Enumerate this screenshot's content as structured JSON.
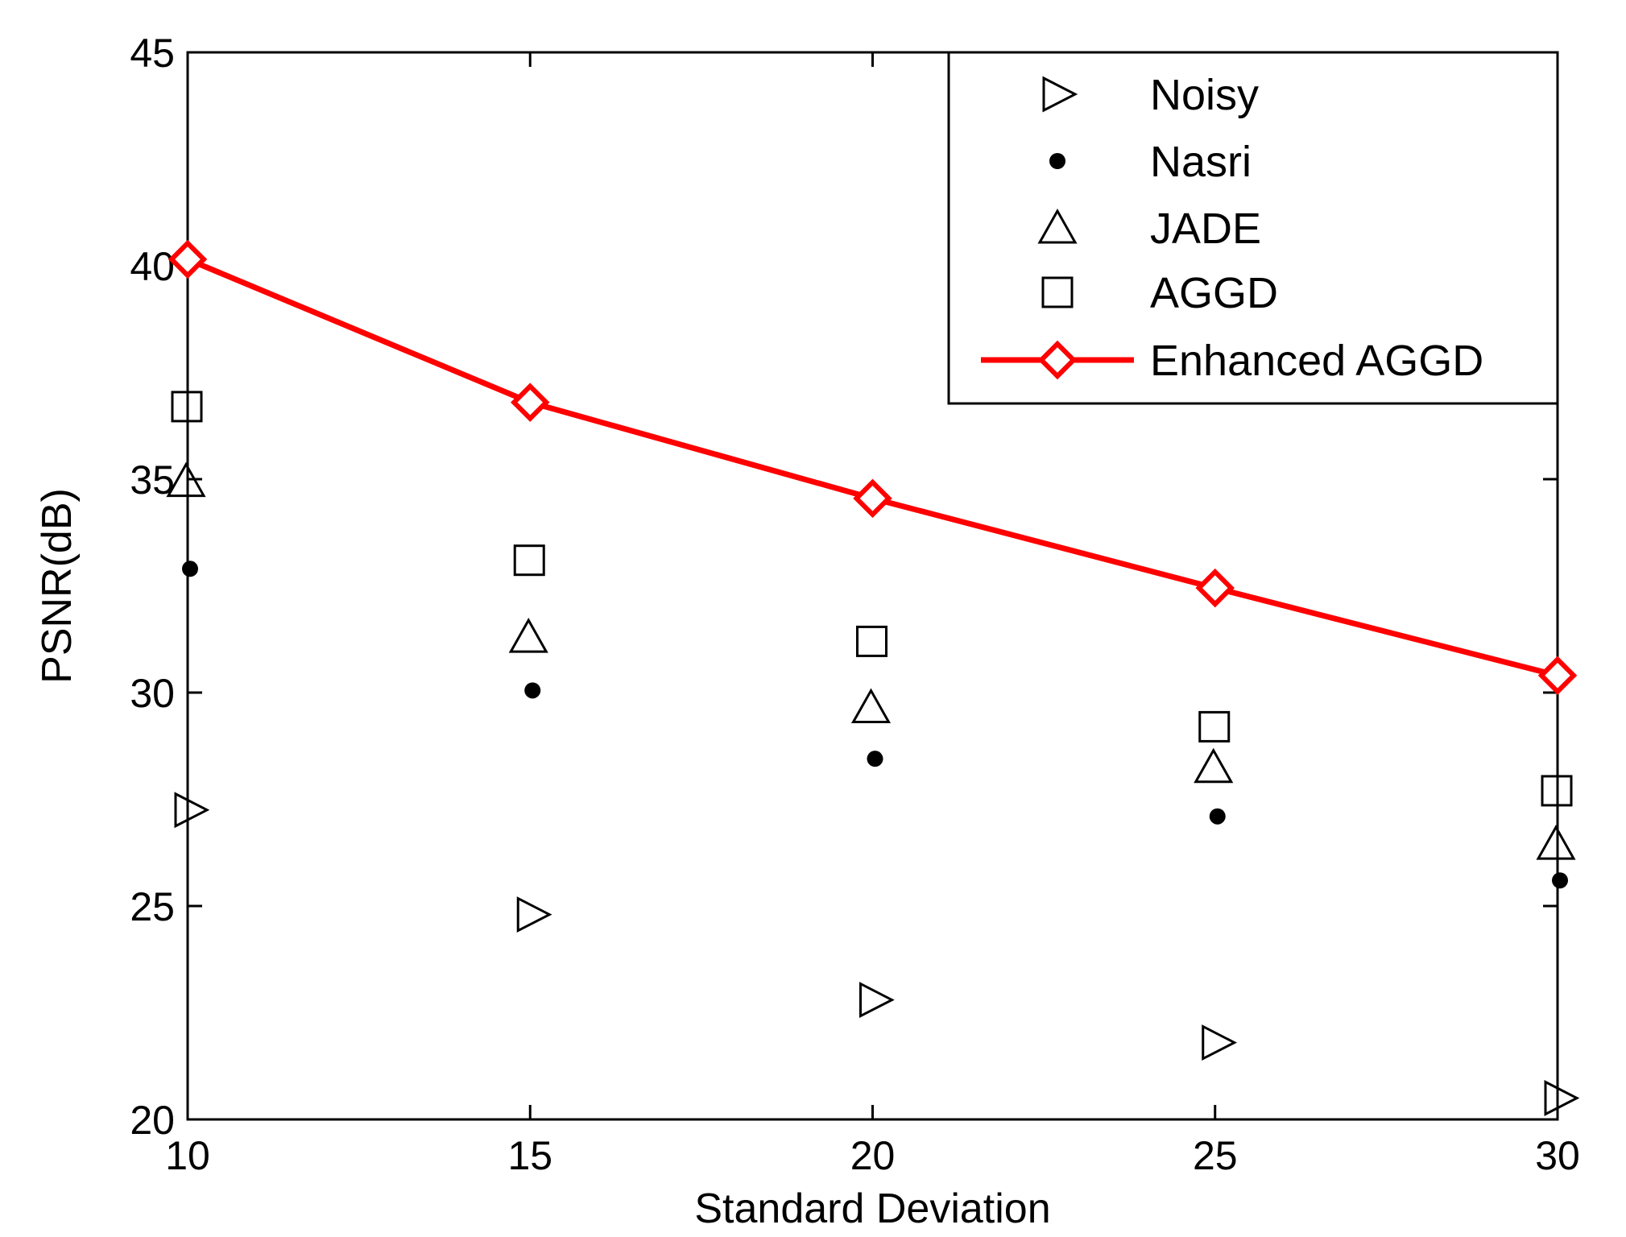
{
  "chart_data": {
    "type": "scatter",
    "title": "",
    "xlabel": "Standard Deviation",
    "ylabel": "PSNR(dB)",
    "xlim": [
      10,
      30
    ],
    "ylim": [
      20,
      45
    ],
    "xticks": [
      10,
      15,
      20,
      25,
      30
    ],
    "yticks": [
      20,
      25,
      30,
      35,
      40,
      45
    ],
    "x": [
      10,
      15,
      20,
      25,
      30
    ],
    "grid": false,
    "legend_position": "top-right",
    "colors": {
      "markers": "#000000",
      "enhanced": "#ff0000"
    },
    "series": [
      {
        "name": "Noisy",
        "marker": "triangle-right",
        "line": false,
        "values": [
          27.25,
          24.8,
          22.8,
          21.8,
          20.5
        ]
      },
      {
        "name": "Nasri",
        "marker": "dot",
        "line": false,
        "values": [
          32.9,
          30.05,
          28.45,
          27.1,
          25.6
        ]
      },
      {
        "name": "JADE",
        "marker": "triangle-up",
        "line": false,
        "values": [
          34.95,
          31.3,
          29.65,
          28.25,
          26.45
        ]
      },
      {
        "name": "AGGD",
        "marker": "square",
        "line": false,
        "values": [
          36.7,
          33.1,
          31.2,
          29.2,
          27.7
        ]
      },
      {
        "name": "Enhanced AGGD",
        "marker": "diamond",
        "line": true,
        "values": [
          40.15,
          36.8,
          34.55,
          32.45,
          30.4
        ]
      }
    ]
  }
}
